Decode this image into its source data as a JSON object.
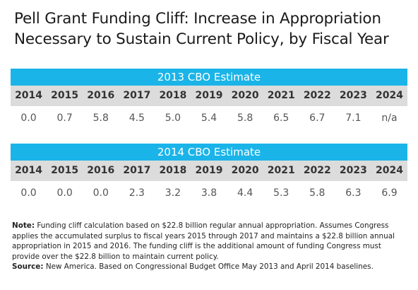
{
  "title": "Pell Grant Funding Cliff: Increase in Appropriation Necessary to Sustain Current Policy, by Fiscal Year",
  "chart_data": [
    {
      "type": "table",
      "title": "2013 CBO Estimate",
      "columns": [
        "2014",
        "2015",
        "2016",
        "2017",
        "2018",
        "2019",
        "2020",
        "2021",
        "2022",
        "2023",
        "2024"
      ],
      "values": [
        "0.0",
        "0.7",
        "5.8",
        "4.5",
        "5.0",
        "5.4",
        "5.8",
        "6.5",
        "6.7",
        "7.1",
        "n/a"
      ]
    },
    {
      "type": "table",
      "title": "2014 CBO Estimate",
      "columns": [
        "2014",
        "2015",
        "2016",
        "2017",
        "2018",
        "2019",
        "2020",
        "2021",
        "2022",
        "2023",
        "2024"
      ],
      "values": [
        "0.0",
        "0.0",
        "0.0",
        "2.3",
        "3.2",
        "3.8",
        "4.4",
        "5.3",
        "5.8",
        "6.3",
        "6.9"
      ]
    }
  ],
  "note_label": "Note:",
  "note_text": "Funding cliff calculation based on $22.8 billion regular annual appropriation. Assumes Congress applies the accumulated surplus to fiscal years 2015 through 2017 and maintains a $22.8 billion annual appropriation in 2015 and 2016. The funding cliff is the additional amount of funding Congress must provide over the $22.8 billion to maintain current policy.",
  "source_label": "Source:",
  "source_text": "New America. Based on Congressional Budget Office May 2013 and April 2014 baselines.",
  "colors": {
    "banner": "#1ab4e8",
    "header_row": "#dcdcdc"
  }
}
